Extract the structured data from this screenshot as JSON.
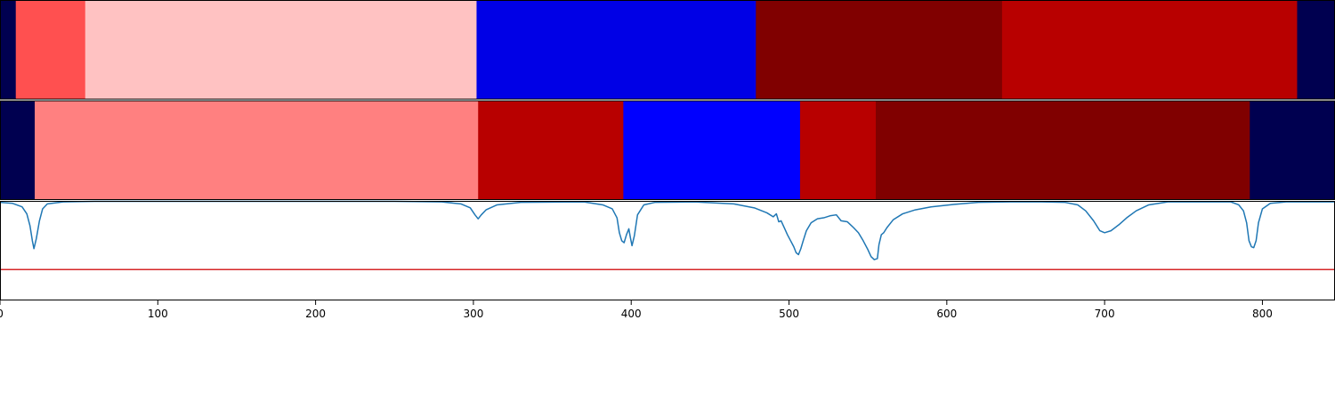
{
  "chart_data": {
    "type": "heatmap",
    "xlim": [
      0,
      846
    ],
    "x_ticks": [
      0,
      100,
      200,
      300,
      400,
      500,
      600,
      700,
      800
    ],
    "x_tick_labels": [
      "0",
      "100",
      "200",
      "300",
      "400",
      "500",
      "600",
      "700",
      "800"
    ],
    "panels": [
      {
        "name": "segments-1",
        "segments": [
          {
            "start": 0,
            "end": 10,
            "color": "#000050"
          },
          {
            "start": 10,
            "end": 54,
            "color": "#ff5050"
          },
          {
            "start": 54,
            "end": 302,
            "color": "#ffc2c2"
          },
          {
            "start": 302,
            "end": 479,
            "color": "#0000e6"
          },
          {
            "start": 479,
            "end": 635,
            "color": "#800000"
          },
          {
            "start": 635,
            "end": 822,
            "color": "#b80000"
          },
          {
            "start": 822,
            "end": 846,
            "color": "#000050"
          }
        ]
      },
      {
        "name": "segments-2",
        "segments": [
          {
            "start": 0,
            "end": 22,
            "color": "#000050"
          },
          {
            "start": 22,
            "end": 303,
            "color": "#ff8080"
          },
          {
            "start": 303,
            "end": 395,
            "color": "#b80000"
          },
          {
            "start": 395,
            "end": 507,
            "color": "#0000ff"
          },
          {
            "start": 507,
            "end": 555,
            "color": "#b80000"
          },
          {
            "start": 555,
            "end": 792,
            "color": "#800000"
          },
          {
            "start": 792,
            "end": 846,
            "color": "#000050"
          }
        ]
      }
    ],
    "signal": {
      "ylim": [
        0,
        1
      ],
      "threshold": 0.31,
      "line_color": "#1f77b4",
      "threshold_color": "#d62728",
      "points": [
        [
          0,
          0.985
        ],
        [
          8,
          0.975
        ],
        [
          14,
          0.94
        ],
        [
          17,
          0.87
        ],
        [
          19,
          0.75
        ],
        [
          20.5,
          0.6
        ],
        [
          21.5,
          0.52
        ],
        [
          23,
          0.62
        ],
        [
          25,
          0.8
        ],
        [
          27,
          0.92
        ],
        [
          30,
          0.97
        ],
        [
          40,
          0.99
        ],
        [
          60,
          0.995
        ],
        [
          250,
          0.995
        ],
        [
          280,
          0.99
        ],
        [
          292,
          0.97
        ],
        [
          298,
          0.93
        ],
        [
          301,
          0.86
        ],
        [
          303,
          0.82
        ],
        [
          305,
          0.86
        ],
        [
          308,
          0.91
        ],
        [
          315,
          0.96
        ],
        [
          330,
          0.985
        ],
        [
          370,
          0.99
        ],
        [
          382,
          0.96
        ],
        [
          388,
          0.92
        ],
        [
          391,
          0.83
        ],
        [
          392.5,
          0.68
        ],
        [
          394,
          0.6
        ],
        [
          395.5,
          0.58
        ],
        [
          397,
          0.66
        ],
        [
          398.5,
          0.72
        ],
        [
          399.5,
          0.63
        ],
        [
          400.5,
          0.55
        ],
        [
          402,
          0.65
        ],
        [
          404,
          0.86
        ],
        [
          408,
          0.96
        ],
        [
          415,
          0.985
        ],
        [
          440,
          0.99
        ],
        [
          465,
          0.97
        ],
        [
          478,
          0.93
        ],
        [
          486,
          0.88
        ],
        [
          490,
          0.84
        ],
        [
          492,
          0.87
        ],
        [
          493.5,
          0.79
        ],
        [
          495,
          0.8
        ],
        [
          497,
          0.73
        ],
        [
          499,
          0.66
        ],
        [
          501,
          0.6
        ],
        [
          503,
          0.54
        ],
        [
          504.5,
          0.48
        ],
        [
          506,
          0.46
        ],
        [
          507.5,
          0.52
        ],
        [
          509,
          0.6
        ],
        [
          511,
          0.7
        ],
        [
          514,
          0.78
        ],
        [
          518,
          0.82
        ],
        [
          522,
          0.83
        ],
        [
          526,
          0.85
        ],
        [
          530,
          0.86
        ],
        [
          533,
          0.8
        ],
        [
          537,
          0.79
        ],
        [
          541,
          0.73
        ],
        [
          544,
          0.68
        ],
        [
          547,
          0.6
        ],
        [
          550,
          0.51
        ],
        [
          552,
          0.44
        ],
        [
          554,
          0.41
        ],
        [
          556,
          0.42
        ],
        [
          557,
          0.56
        ],
        [
          558.5,
          0.66
        ],
        [
          560,
          0.68
        ],
        [
          562,
          0.73
        ],
        [
          566,
          0.81
        ],
        [
          572,
          0.87
        ],
        [
          580,
          0.91
        ],
        [
          590,
          0.94
        ],
        [
          605,
          0.965
        ],
        [
          620,
          0.985
        ],
        [
          640,
          0.99
        ],
        [
          660,
          0.99
        ],
        [
          675,
          0.985
        ],
        [
          683,
          0.96
        ],
        [
          688,
          0.9
        ],
        [
          693,
          0.8
        ],
        [
          697,
          0.7
        ],
        [
          700,
          0.68
        ],
        [
          704,
          0.7
        ],
        [
          709,
          0.76
        ],
        [
          714,
          0.83
        ],
        [
          720,
          0.9
        ],
        [
          728,
          0.96
        ],
        [
          740,
          0.99
        ],
        [
          780,
          0.99
        ],
        [
          785,
          0.96
        ],
        [
          788,
          0.9
        ],
        [
          790,
          0.78
        ],
        [
          791.5,
          0.6
        ],
        [
          793,
          0.54
        ],
        [
          794.5,
          0.53
        ],
        [
          796,
          0.6
        ],
        [
          797.5,
          0.78
        ],
        [
          800,
          0.92
        ],
        [
          805,
          0.975
        ],
        [
          815,
          0.99
        ],
        [
          846,
          0.99
        ]
      ]
    }
  }
}
